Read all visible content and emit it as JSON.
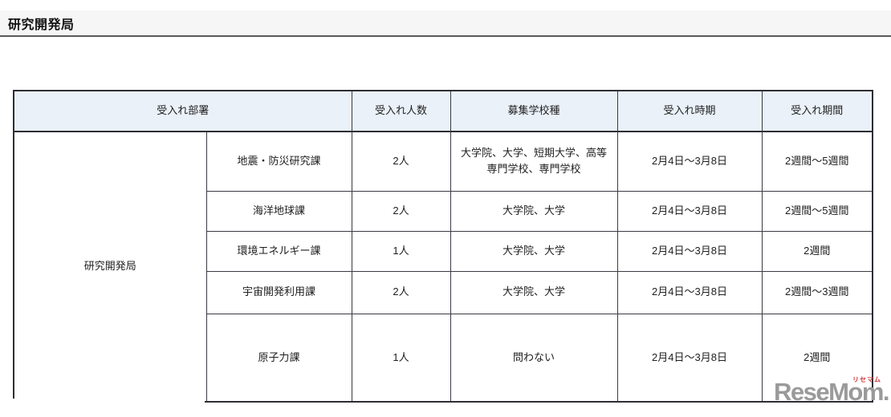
{
  "page": {
    "title": "研究開発局"
  },
  "table": {
    "headers": [
      "受入れ部署",
      "受入れ人数",
      "募集学校種",
      "受入れ時期",
      "受入れ期間"
    ],
    "bureau": "研究開発局",
    "rows": [
      {
        "division": "地震・防災研究課",
        "count": "2人",
        "schools": "大学院、大学、短期大学、高等専門学校、専門学校",
        "period": "2月4日～3月8日",
        "duration": "2週間～5週間"
      },
      {
        "division": "海洋地球課",
        "count": "2人",
        "schools": "大学院、大学",
        "period": "2月4日～3月8日",
        "duration": "2週間～5週間"
      },
      {
        "division": "環境エネルギー課",
        "count": "1人",
        "schools": "大学院、大学",
        "period": "2月4日～3月8日",
        "duration": "2週間"
      },
      {
        "division": "宇宙開発利用課",
        "count": "2人",
        "schools": "大学院、大学",
        "period": "2月4日～3月8日",
        "duration": "2週間～3週間"
      },
      {
        "division": "原子力課",
        "count": "1人",
        "schools": "問わない",
        "period": "2月4日～3月8日",
        "duration": "2週間"
      }
    ]
  },
  "watermark": {
    "logo": "ReseMom.",
    "ruby": "リセマム"
  }
}
